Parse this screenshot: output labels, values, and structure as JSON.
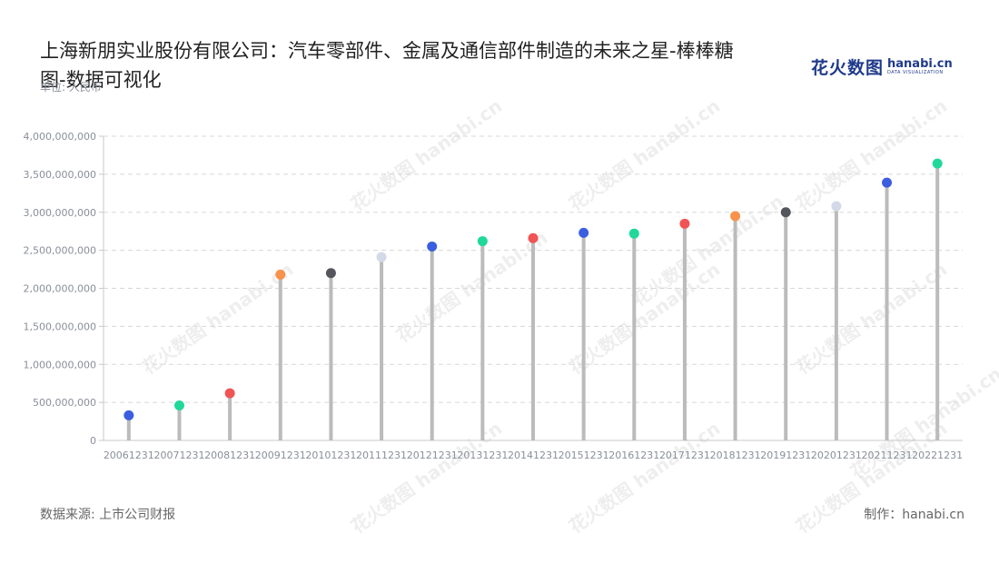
{
  "title": "上海新朋实业股份有限公司：汽车零部件、金属及通信部件制造的未来之星-棒棒糖图-数据可视化",
  "unit_label": "单位: 人民币",
  "logo": {
    "cn": "花火数图",
    "en": "hanabi.cn",
    "sub": "DATA VISUALIZATION"
  },
  "watermark": "花火数图 hanabi.cn",
  "footer": {
    "source": "数据来源: 上市公司财报",
    "credit": "制作：hanabi.cn"
  },
  "chart_data": {
    "type": "lollipop",
    "title": "上海新朋实业股份有限公司：汽车零部件、金属及通信部件制造的未来之星-棒棒糖图-数据可视化",
    "ylabel": "单位: 人民币",
    "ylim": [
      0,
      4000000000
    ],
    "yticks": [
      0,
      500000000,
      1000000000,
      1500000000,
      2000000000,
      2500000000,
      3000000000,
      3500000000,
      4000000000
    ],
    "ytick_labels": [
      "0",
      "500,000,000",
      "1,000,000,000",
      "1,500,000,000",
      "2,000,000,000",
      "2,500,000,000",
      "3,000,000,000",
      "3,500,000,000",
      "4,000,000,000"
    ],
    "grid": true,
    "stem_color": "#bbbbbb",
    "categories": [
      "20061231",
      "20071231",
      "20081231",
      "20091231",
      "20101231",
      "20111231",
      "20121231",
      "20131231",
      "20141231",
      "20151231",
      "20161231",
      "20171231",
      "20181231",
      "20191231",
      "20201231",
      "20211231",
      "20221231"
    ],
    "values": [
      330000000,
      460000000,
      620000000,
      2180000000,
      2200000000,
      2410000000,
      2550000000,
      2620000000,
      2660000000,
      2730000000,
      2720000000,
      2850000000,
      2950000000,
      3000000000,
      3080000000,
      3390000000,
      3640000000
    ],
    "colors": [
      "#3b5ee0",
      "#1fd89a",
      "#f05454",
      "#f7934c",
      "#55555e",
      "#d3d9e6",
      "#3b5ee0",
      "#1fd89a",
      "#f05454",
      "#3b5ee0",
      "#1fd89a",
      "#f05454",
      "#f7934c",
      "#55555e",
      "#d3d9e6",
      "#3b5ee0",
      "#1fd89a"
    ]
  }
}
